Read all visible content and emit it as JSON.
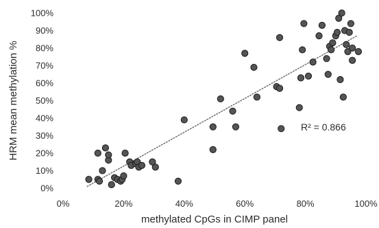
{
  "chart_data": {
    "type": "scatter",
    "title": "",
    "xlabel": "methylated CpGs in CIMP panel",
    "ylabel": "HRM mean methylation %",
    "xlim": [
      0,
      100
    ],
    "ylim": [
      0,
      100
    ],
    "x_ticks": [
      "0%",
      "20%",
      "40%",
      "60%",
      "80%",
      "100%"
    ],
    "y_ticks": [
      "0%",
      "10%",
      "20%",
      "30%",
      "40%",
      "50%",
      "60%",
      "70%",
      "80%",
      "90%",
      "100%"
    ],
    "grid": false,
    "legend": "none",
    "marker_color": "#555555",
    "marker_edge_color": "#1a1a1a",
    "trendline": {
      "type": "linear",
      "style": "dotted",
      "color": "#777777",
      "x_range": [
        8,
        97
      ],
      "y_range": [
        1,
        87
      ],
      "label": "R² = 0.866"
    },
    "points": [
      {
        "x": 8.5,
        "y": 5
      },
      {
        "x": 11.5,
        "y": 5
      },
      {
        "x": 12,
        "y": 4
      },
      {
        "x": 11.5,
        "y": 20
      },
      {
        "x": 13,
        "y": 10
      },
      {
        "x": 14,
        "y": 23
      },
      {
        "x": 15,
        "y": 16
      },
      {
        "x": 15,
        "y": 19
      },
      {
        "x": 16,
        "y": 2
      },
      {
        "x": 17,
        "y": 6
      },
      {
        "x": 18,
        "y": 5
      },
      {
        "x": 19,
        "y": 4
      },
      {
        "x": 19.5,
        "y": 5
      },
      {
        "x": 20,
        "y": 7
      },
      {
        "x": 20.5,
        "y": 20
      },
      {
        "x": 22,
        "y": 15
      },
      {
        "x": 22.5,
        "y": 13
      },
      {
        "x": 24,
        "y": 14
      },
      {
        "x": 24.5,
        "y": 15
      },
      {
        "x": 25,
        "y": 12
      },
      {
        "x": 26,
        "y": 13
      },
      {
        "x": 29.5,
        "y": 15
      },
      {
        "x": 30.5,
        "y": 12
      },
      {
        "x": 38,
        "y": 4
      },
      {
        "x": 40,
        "y": 39
      },
      {
        "x": 49.5,
        "y": 35
      },
      {
        "x": 49.5,
        "y": 22
      },
      {
        "x": 52,
        "y": 51
      },
      {
        "x": 56,
        "y": 44
      },
      {
        "x": 57,
        "y": 35
      },
      {
        "x": 60,
        "y": 77
      },
      {
        "x": 63,
        "y": 69
      },
      {
        "x": 64,
        "y": 52
      },
      {
        "x": 70.5,
        "y": 58
      },
      {
        "x": 71.5,
        "y": 57
      },
      {
        "x": 71.5,
        "y": 86
      },
      {
        "x": 72,
        "y": 34
      },
      {
        "x": 78,
        "y": 46
      },
      {
        "x": 78.5,
        "y": 63
      },
      {
        "x": 79,
        "y": 79
      },
      {
        "x": 79.5,
        "y": 94
      },
      {
        "x": 81,
        "y": 64
      },
      {
        "x": 82.5,
        "y": 72
      },
      {
        "x": 84.5,
        "y": 87
      },
      {
        "x": 85.5,
        "y": 93
      },
      {
        "x": 87,
        "y": 74
      },
      {
        "x": 87.5,
        "y": 65
      },
      {
        "x": 88,
        "y": 81
      },
      {
        "x": 88.5,
        "y": 79
      },
      {
        "x": 89,
        "y": 83
      },
      {
        "x": 90,
        "y": 87
      },
      {
        "x": 90.5,
        "y": 89
      },
      {
        "x": 91,
        "y": 97
      },
      {
        "x": 91.5,
        "y": 62
      },
      {
        "x": 92,
        "y": 100
      },
      {
        "x": 92.5,
        "y": 52
      },
      {
        "x": 93,
        "y": 90
      },
      {
        "x": 93.5,
        "y": 82
      },
      {
        "x": 94,
        "y": 78
      },
      {
        "x": 94.5,
        "y": 89
      },
      {
        "x": 95,
        "y": 94
      },
      {
        "x": 95.5,
        "y": 80
      },
      {
        "x": 95.5,
        "y": 73
      },
      {
        "x": 97.5,
        "y": 78
      }
    ]
  }
}
